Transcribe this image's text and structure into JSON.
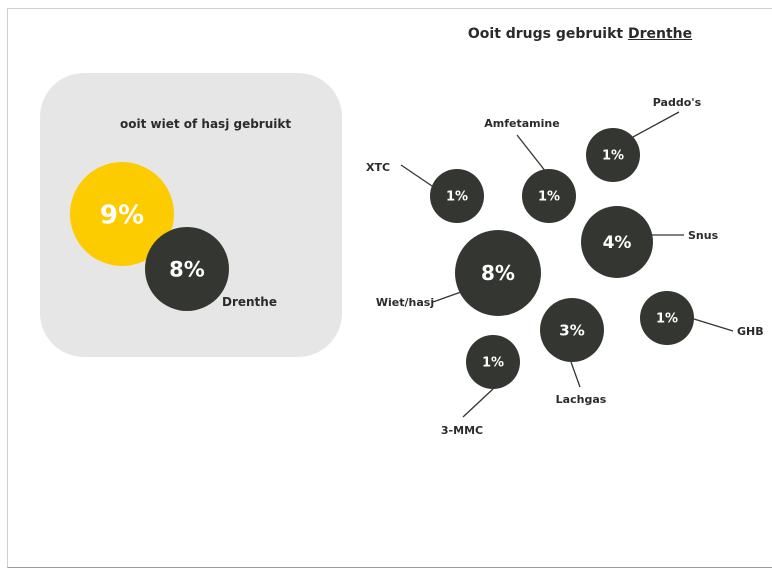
{
  "chart_data": [
    {
      "type": "bubble-comparison",
      "title": "ooit wiet of hasj gebruikt",
      "bubbles": [
        {
          "name": "",
          "value": 9,
          "label": "9%"
        },
        {
          "name": "Drenthe",
          "value": 8,
          "label": "8%"
        }
      ]
    },
    {
      "type": "bubble",
      "title": "Ooit drugs gebruikt",
      "title_region": "Drenthe",
      "bubbles": [
        {
          "name": "Paddo's",
          "value": 1,
          "label": "1%"
        },
        {
          "name": "Amfetamine",
          "value": 1,
          "label": "1%"
        },
        {
          "name": "XTC",
          "value": 1,
          "label": "1%"
        },
        {
          "name": "Snus",
          "value": 4,
          "label": "4%"
        },
        {
          "name": "Wiet/hasj",
          "value": 8,
          "label": "8%"
        },
        {
          "name": "GHB",
          "value": 1,
          "label": "1%"
        },
        {
          "name": "Lachgas",
          "value": 3,
          "label": "3%"
        },
        {
          "name": "3-MMC",
          "value": 1,
          "label": "1%"
        }
      ]
    }
  ],
  "colors": {
    "highlight": "#fccc00",
    "bubble": "#333631",
    "panel": "#e6e6e6",
    "text": "#2b2b2b",
    "leader": "#333631"
  }
}
